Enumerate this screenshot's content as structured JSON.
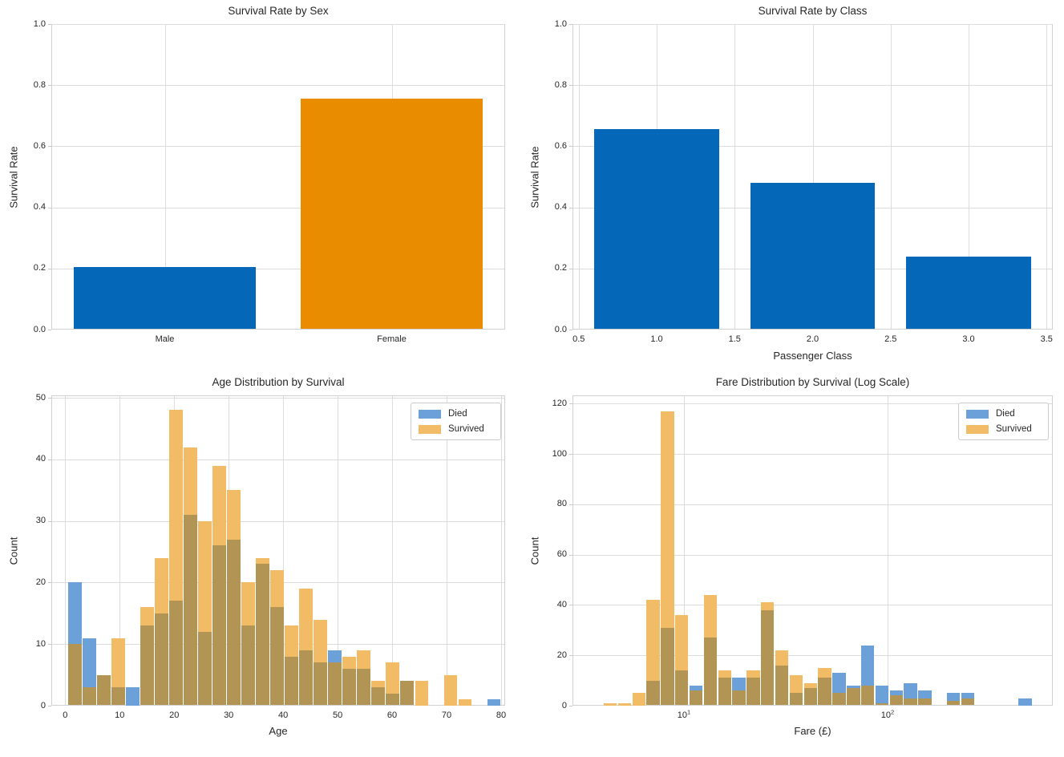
{
  "figure": {
    "background": "#ffffff",
    "text_color": "#262626",
    "grid_color": "#dcdcdc",
    "spine_color": "#d0d0d0",
    "accent_blue": "#0467b8",
    "accent_orange": "#ea8c00"
  },
  "chart_data": [
    {
      "id": "survival-by-sex",
      "type": "bar",
      "title": "Survival Rate by Sex",
      "xlabel": "",
      "ylabel": "Survival Rate",
      "categories": [
        "Male",
        "Female"
      ],
      "values": [
        0.205,
        0.755
      ],
      "bar_colors": [
        "#0467b8",
        "#ea8c00"
      ],
      "ylim": [
        0,
        1.0
      ],
      "yticks": [
        0,
        0.2,
        0.4,
        0.6,
        0.8,
        1.0
      ],
      "ytick_labels": [
        "0.0",
        "0.2",
        "0.4",
        "0.6",
        "0.8",
        "1.0"
      ],
      "grid": "on",
      "legend_position": "none"
    },
    {
      "id": "survival-by-class",
      "type": "bar-numeric",
      "title": "Survival Rate by Class",
      "xlabel": "Passenger Class",
      "ylabel": "Survival Rate",
      "x": [
        1.0,
        2.0,
        3.0
      ],
      "values": [
        0.655,
        0.48,
        0.24
      ],
      "bar_color": "#0467b8",
      "bar_width": 0.8,
      "xlim": [
        0.46,
        3.54
      ],
      "xticks": [
        0.5,
        1.0,
        1.5,
        2.0,
        2.5,
        3.0,
        3.5
      ],
      "xtick_labels": [
        "0.5",
        "1.0",
        "1.5",
        "2.0",
        "2.5",
        "3.0",
        "3.5"
      ],
      "ylim": [
        0,
        1.0
      ],
      "yticks": [
        0,
        0.2,
        0.4,
        0.6,
        0.8,
        1.0
      ],
      "ytick_labels": [
        "0.0",
        "0.2",
        "0.4",
        "0.6",
        "0.8",
        "1.0"
      ],
      "grid": "on",
      "legend_position": "none"
    },
    {
      "id": "age-distribution",
      "type": "histogram-overlay",
      "title": "Age Distribution by Survival",
      "xlabel": "Age",
      "ylabel": "Count",
      "xscale": "linear",
      "bin_start": 0.42,
      "bin_width": 2.652,
      "series": [
        {
          "name": "Died",
          "color": "#6ba0d8",
          "values": [
            20,
            11,
            5,
            3,
            3,
            13,
            15,
            17,
            31,
            12,
            26,
            27,
            13,
            23,
            16,
            8,
            9,
            7,
            9,
            6,
            6,
            3,
            2,
            4,
            0,
            0,
            0,
            0,
            0,
            1
          ]
        },
        {
          "name": "Survived",
          "color": "#f2bb66",
          "values": [
            10,
            3,
            5,
            11,
            0,
            16,
            24,
            48,
            42,
            30,
            39,
            35,
            20,
            24,
            22,
            13,
            19,
            14,
            7,
            8,
            9,
            4,
            7,
            4,
            4,
            0,
            5,
            1,
            0,
            0
          ]
        }
      ],
      "overlap_color": "#b29455",
      "xlim": [
        -2.55,
        80.74
      ],
      "xticks": [
        0,
        10,
        20,
        30,
        40,
        50,
        60,
        70,
        80
      ],
      "xtick_labels": [
        "0",
        "10",
        "20",
        "30",
        "40",
        "50",
        "60",
        "70",
        "80"
      ],
      "ylim": [
        0,
        50.4
      ],
      "yticks": [
        0,
        10,
        20,
        30,
        40,
        50
      ],
      "ytick_labels": [
        "0",
        "10",
        "20",
        "30",
        "40",
        "50"
      ],
      "grid": "on",
      "legend_position": "upper right",
      "legend": [
        "Died",
        "Survived"
      ]
    },
    {
      "id": "fare-distribution",
      "type": "histogram-overlay",
      "title": "Fare Distribution by Survival (Log Scale)",
      "xlabel": "Fare (£)",
      "ylabel": "Count",
      "xscale": "log",
      "bin_start_log10": 0.6027,
      "bin_width_log10": 0.07022,
      "series": [
        {
          "name": "Died",
          "color": "#6ba0d8",
          "values": [
            0,
            0,
            0,
            10,
            31,
            14,
            8,
            27,
            11,
            11,
            11,
            38,
            16,
            5,
            7,
            11,
            13,
            8,
            24,
            8,
            6,
            9,
            6,
            0,
            5,
            5,
            0,
            0,
            0,
            3
          ]
        },
        {
          "name": "Survived",
          "color": "#f2bb66",
          "values": [
            1,
            1,
            5,
            42,
            117,
            36,
            6,
            44,
            14,
            6,
            14,
            41,
            22,
            12,
            9,
            15,
            5,
            7,
            8,
            1,
            4,
            3,
            3,
            0,
            2,
            3,
            0,
            0,
            0,
            0
          ]
        }
      ],
      "overlap_color": "#b29455",
      "xlim_log10": [
        0.4528,
        2.811
      ],
      "xticks": [
        10,
        100
      ],
      "xtick_labels": [
        {
          "base": "10",
          "exp": "1"
        },
        {
          "base": "10",
          "exp": "2"
        }
      ],
      "ylim": [
        0,
        123.3
      ],
      "yticks": [
        0,
        20,
        40,
        60,
        80,
        100,
        120
      ],
      "ytick_labels": [
        "0",
        "20",
        "40",
        "60",
        "80",
        "100",
        "120"
      ],
      "grid": "on",
      "legend_position": "upper right",
      "legend": [
        "Died",
        "Survived"
      ]
    }
  ]
}
